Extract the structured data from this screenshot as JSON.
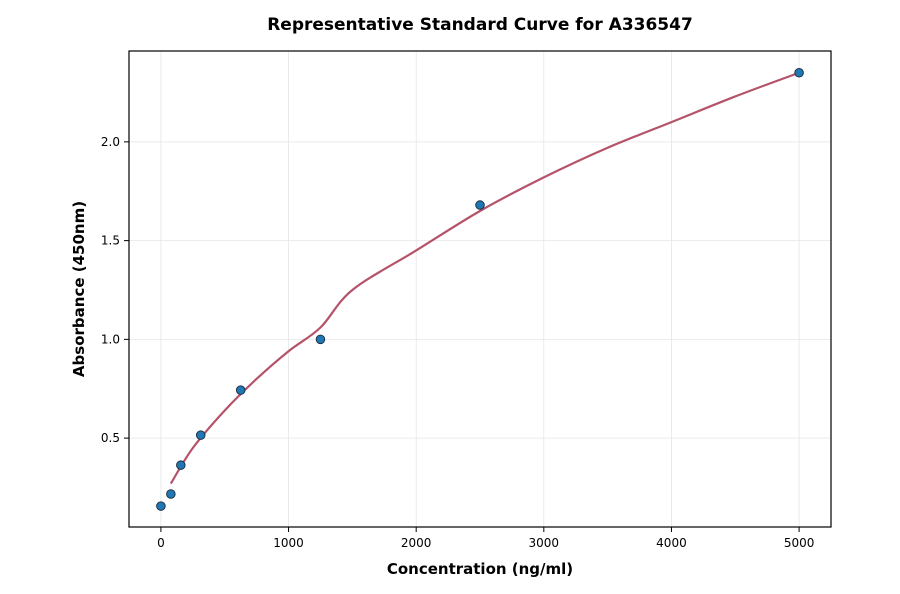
{
  "chart_data": {
    "type": "scatter",
    "title": "Representative Standard Curve for A336547",
    "xlabel": "Concentration (ng/ml)",
    "ylabel": "Absorbance (450nm)",
    "xlim": [
      -250,
      5250
    ],
    "ylim": [
      0.05,
      2.46
    ],
    "xticks": [
      0,
      1000,
      2000,
      3000,
      4000,
      5000
    ],
    "yticks": [
      0.5,
      1.0,
      1.5,
      2.0
    ],
    "xtick_labels": [
      "0",
      "1000",
      "2000",
      "3000",
      "4000",
      "5000"
    ],
    "ytick_labels": [
      "0.5",
      "1.0",
      "1.5",
      "2.0"
    ],
    "grid": true,
    "points": {
      "x": [
        0,
        78,
        156,
        312,
        625,
        1250,
        2500,
        5000
      ],
      "y": [
        0.156,
        0.217,
        0.363,
        0.515,
        0.743,
        1.0,
        1.68,
        2.35
      ],
      "color": "#1f77b4"
    },
    "fit_curve": {
      "x": [
        78,
        250,
        500,
        750,
        1000,
        1250,
        1500,
        2000,
        2500,
        3000,
        3500,
        4000,
        4500,
        5000
      ],
      "y": [
        0.27,
        0.45,
        0.64,
        0.8,
        0.94,
        1.06,
        1.25,
        1.45,
        1.65,
        1.82,
        1.97,
        2.1,
        2.23,
        2.35
      ],
      "color": "#b5536a"
    }
  }
}
